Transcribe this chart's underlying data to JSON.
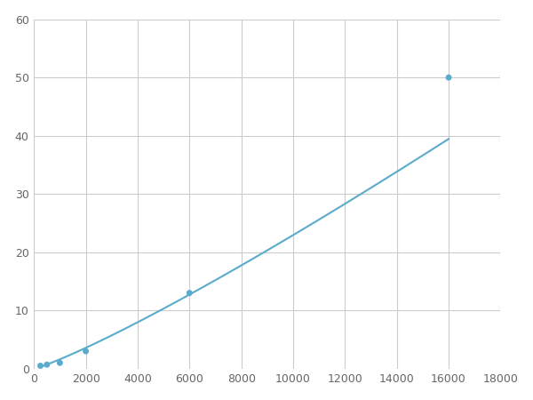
{
  "x": [
    250,
    500,
    1000,
    2000,
    6000,
    16000
  ],
  "y": [
    0.5,
    0.7,
    1.0,
    3.0,
    13.0,
    50.0
  ],
  "line_color": "#5aabcc",
  "marker_color": "#5aabcc",
  "xlim": [
    0,
    18000
  ],
  "ylim": [
    0,
    60
  ],
  "xticks": [
    0,
    2000,
    4000,
    6000,
    8000,
    10000,
    12000,
    14000,
    16000,
    18000
  ],
  "yticks": [
    0,
    10,
    20,
    30,
    40,
    50,
    60
  ],
  "grid_color": "#cccccc",
  "background_color": "#ffffff",
  "marker_size": 5,
  "line_width": 1.5
}
